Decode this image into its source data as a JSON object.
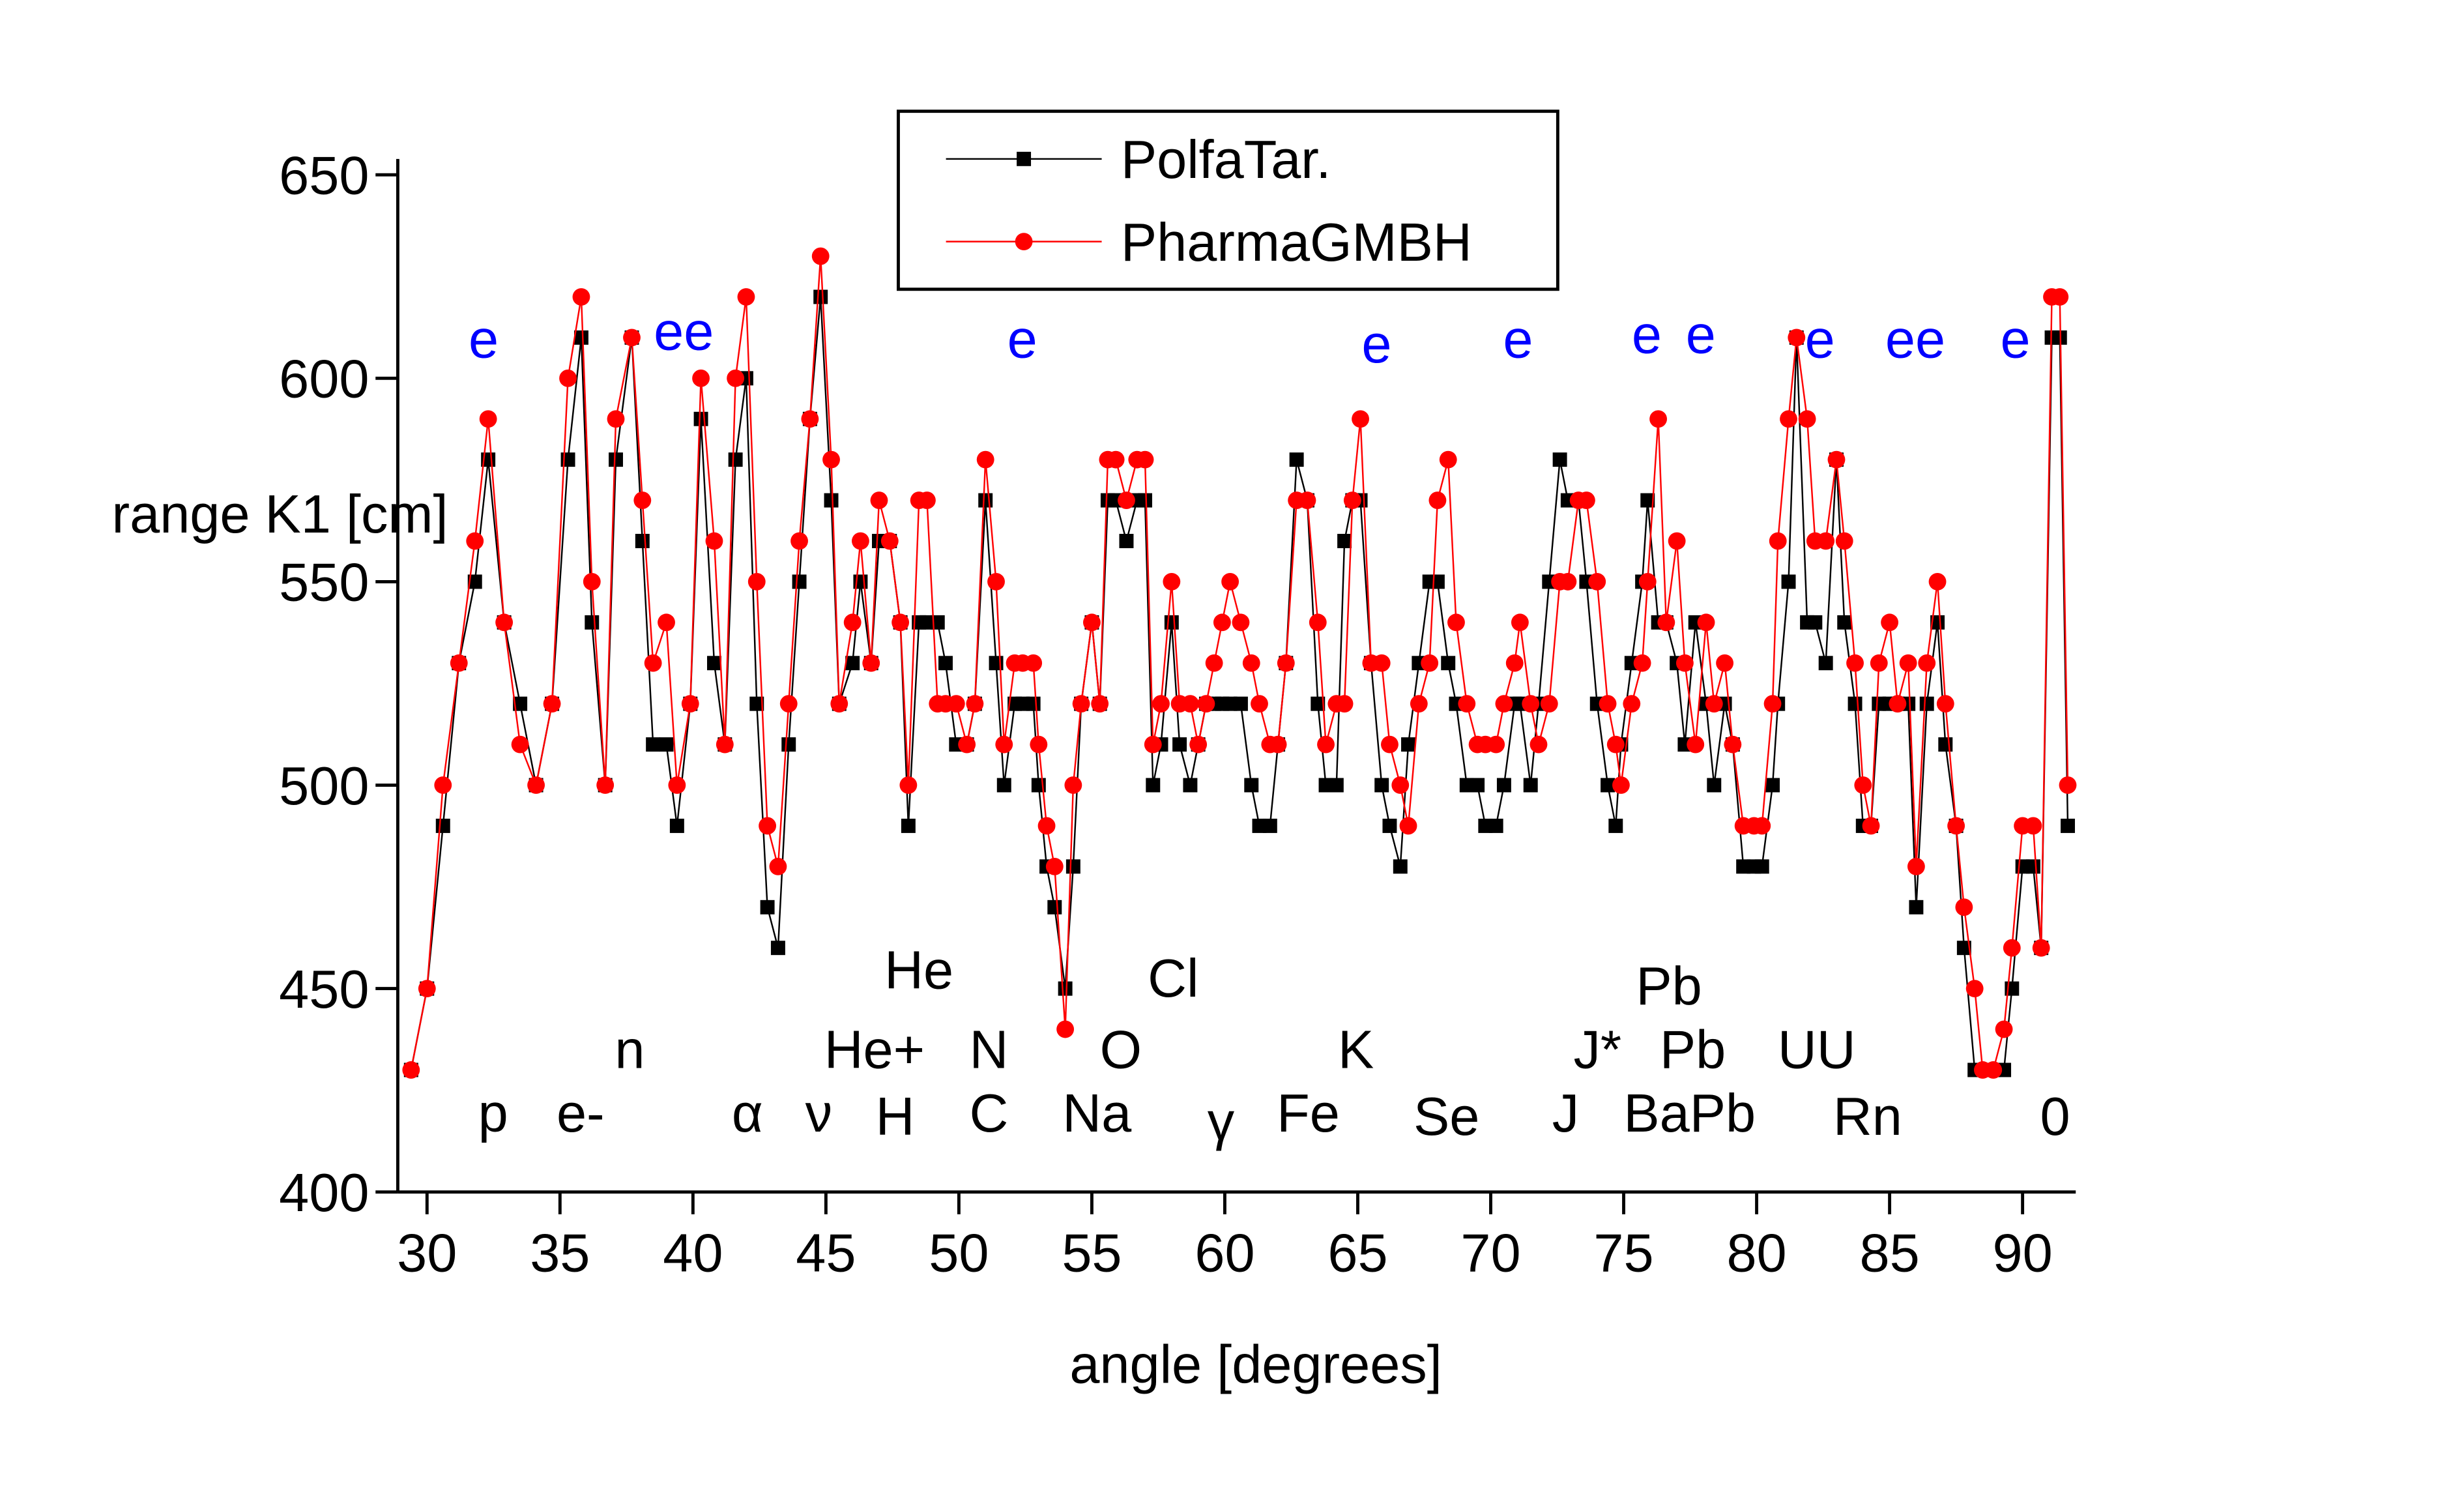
{
  "chart_data": {
    "type": "line",
    "xlabel": "angle [degrees]",
    "ylabel": "range K1 [cm]",
    "xlim": [
      28.9,
      92
    ],
    "ylim": [
      400,
      650
    ],
    "xticks": [
      30,
      35,
      40,
      45,
      50,
      55,
      60,
      65,
      70,
      75,
      80,
      85,
      90
    ],
    "yticks": [
      400,
      450,
      500,
      550,
      600,
      650
    ],
    "legend": "upper center",
    "x": [
      29.4,
      30.0,
      30.6,
      31.2,
      31.8,
      32.3,
      32.9,
      33.5,
      34.1,
      34.7,
      35.3,
      35.8,
      36.2,
      36.7,
      37.1,
      37.7,
      38.1,
      38.5,
      39.0,
      39.4,
      39.9,
      40.3,
      40.8,
      41.2,
      41.6,
      42.0,
      42.4,
      42.8,
      43.2,
      43.6,
      44.0,
      44.4,
      44.8,
      45.2,
      45.5,
      46.0,
      46.3,
      46.7,
      47.0,
      47.4,
      47.8,
      48.1,
      48.5,
      48.8,
      49.2,
      49.5,
      49.9,
      50.3,
      50.6,
      51.0,
      51.4,
      51.7,
      52.1,
      52.4,
      52.8,
      53.0,
      53.3,
      53.6,
      54.0,
      54.3,
      54.6,
      55.0,
      55.3,
      55.6,
      55.9,
      56.3,
      56.7,
      57.0,
      57.3,
      57.6,
      58.0,
      58.3,
      58.7,
      59.0,
      59.3,
      59.6,
      59.9,
      60.2,
      60.6,
      61.0,
      61.3,
      61.7,
      62.0,
      62.3,
      62.7,
      63.1,
      63.5,
      63.8,
      64.2,
      64.5,
      64.8,
      65.1,
      65.5,
      65.9,
      66.2,
      66.6,
      66.9,
      67.3,
      67.7,
      68.0,
      68.4,
      68.7,
      69.1,
      69.5,
      69.8,
      70.2,
      70.5,
      70.9,
      71.1,
      71.5,
      71.8,
      72.2,
      72.6,
      72.9,
      73.3,
      73.6,
      74.0,
      74.4,
      74.7,
      74.9,
      75.3,
      75.7,
      75.9,
      76.3,
      76.6,
      77.0,
      77.3,
      77.7,
      78.1,
      78.4,
      78.8,
      79.1,
      79.5,
      79.9,
      80.2,
      80.6,
      80.8,
      81.2,
      81.5,
      81.9,
      82.2,
      82.6,
      83.0,
      83.3,
      83.7,
      84.0,
      84.3,
      84.6,
      85.0,
      85.3,
      85.7,
      86.0,
      86.4,
      86.8,
      87.1,
      87.5,
      87.8,
      88.2,
      88.5,
      88.9,
      89.3,
      89.6,
      90.0,
      90.4,
      90.7,
      91.1,
      91.4,
      91.7
    ],
    "series": [
      {
        "name": "PolfaTar.",
        "color": "#000000",
        "marker": "square",
        "values": [
          430,
          450,
          490,
          530,
          550,
          580,
          540,
          520,
          500,
          520,
          580,
          610,
          540,
          500,
          580,
          610,
          560,
          510,
          510,
          490,
          520,
          590,
          530,
          510,
          580,
          600,
          520,
          470,
          460,
          510,
          550,
          590,
          620,
          570,
          520,
          530,
          550,
          530,
          560,
          560,
          540,
          490,
          540,
          540,
          540,
          530,
          510,
          510,
          520,
          570,
          530,
          500,
          520,
          520,
          520,
          500,
          480,
          470,
          450,
          480,
          520,
          540,
          520,
          570,
          570,
          560,
          570,
          570,
          500,
          510,
          540,
          510,
          500,
          510,
          520,
          520,
          520,
          520,
          520,
          500,
          490,
          490,
          510,
          530,
          580,
          570,
          520,
          500,
          500,
          560,
          570,
          570,
          530,
          500,
          490,
          480,
          510,
          530,
          550,
          550,
          530,
          520,
          500,
          500,
          490,
          490,
          500,
          520,
          520,
          500,
          520,
          550,
          580,
          570,
          570,
          550,
          520,
          500,
          490,
          510,
          530,
          550,
          570,
          540,
          540,
          530,
          510,
          540,
          520,
          500,
          520,
          510,
          480,
          480,
          480,
          500,
          520,
          550,
          610,
          540,
          540,
          530,
          580,
          540,
          520,
          490,
          490,
          520,
          520,
          520,
          520,
          470,
          520,
          540,
          510,
          490,
          460,
          430,
          430,
          430,
          430,
          450,
          480,
          480,
          460,
          610,
          610,
          490
        ]
      },
      {
        "name": "PharmaGMBH",
        "color": "#ff0000",
        "marker": "circle",
        "values": [
          430,
          450,
          500,
          530,
          560,
          590,
          540,
          510,
          500,
          520,
          600,
          620,
          550,
          500,
          590,
          610,
          570,
          530,
          540,
          500,
          520,
          600,
          560,
          510,
          600,
          620,
          550,
          490,
          480,
          520,
          560,
          590,
          630,
          580,
          520,
          540,
          560,
          530,
          570,
          560,
          540,
          500,
          570,
          570,
          520,
          520,
          520,
          510,
          520,
          580,
          550,
          510,
          530,
          530,
          530,
          510,
          490,
          480,
          440,
          500,
          520,
          540,
          520,
          580,
          580,
          570,
          580,
          580,
          510,
          520,
          550,
          520,
          520,
          510,
          520,
          530,
          540,
          550,
          540,
          530,
          520,
          510,
          510,
          530,
          570,
          570,
          540,
          510,
          520,
          520,
          570,
          590,
          530,
          530,
          510,
          500,
          490,
          520,
          530,
          570,
          580,
          540,
          520,
          510,
          510,
          510,
          520,
          530,
          540,
          520,
          510,
          520,
          550,
          550,
          570,
          570,
          550,
          520,
          510,
          500,
          520,
          530,
          550,
          590,
          540,
          560,
          530,
          510,
          540,
          520,
          530,
          510,
          490,
          490,
          490,
          520,
          560,
          590,
          610,
          590,
          560,
          560,
          580,
          560,
          530,
          500,
          490,
          530,
          540,
          520,
          530,
          480,
          530,
          550,
          520,
          490,
          470,
          450,
          430,
          430,
          440,
          460,
          490,
          490,
          460,
          620,
          620,
          500
        ]
      }
    ],
    "annotations": [
      "p",
      "e-",
      "n",
      "α",
      "ν",
      "He+",
      "He",
      "H",
      "N",
      "C",
      "O",
      "Cl",
      "Na",
      "γ",
      "Fe",
      "K",
      "Se",
      "J*",
      "Pb",
      "Pb",
      "J",
      "BaPb",
      "UU",
      "Rn",
      "0"
    ],
    "markers": [
      "e",
      "ee",
      "e",
      "e",
      "e",
      "e",
      "e",
      "e",
      "ee",
      "e"
    ],
    "markers_color": "#0000ff"
  }
}
